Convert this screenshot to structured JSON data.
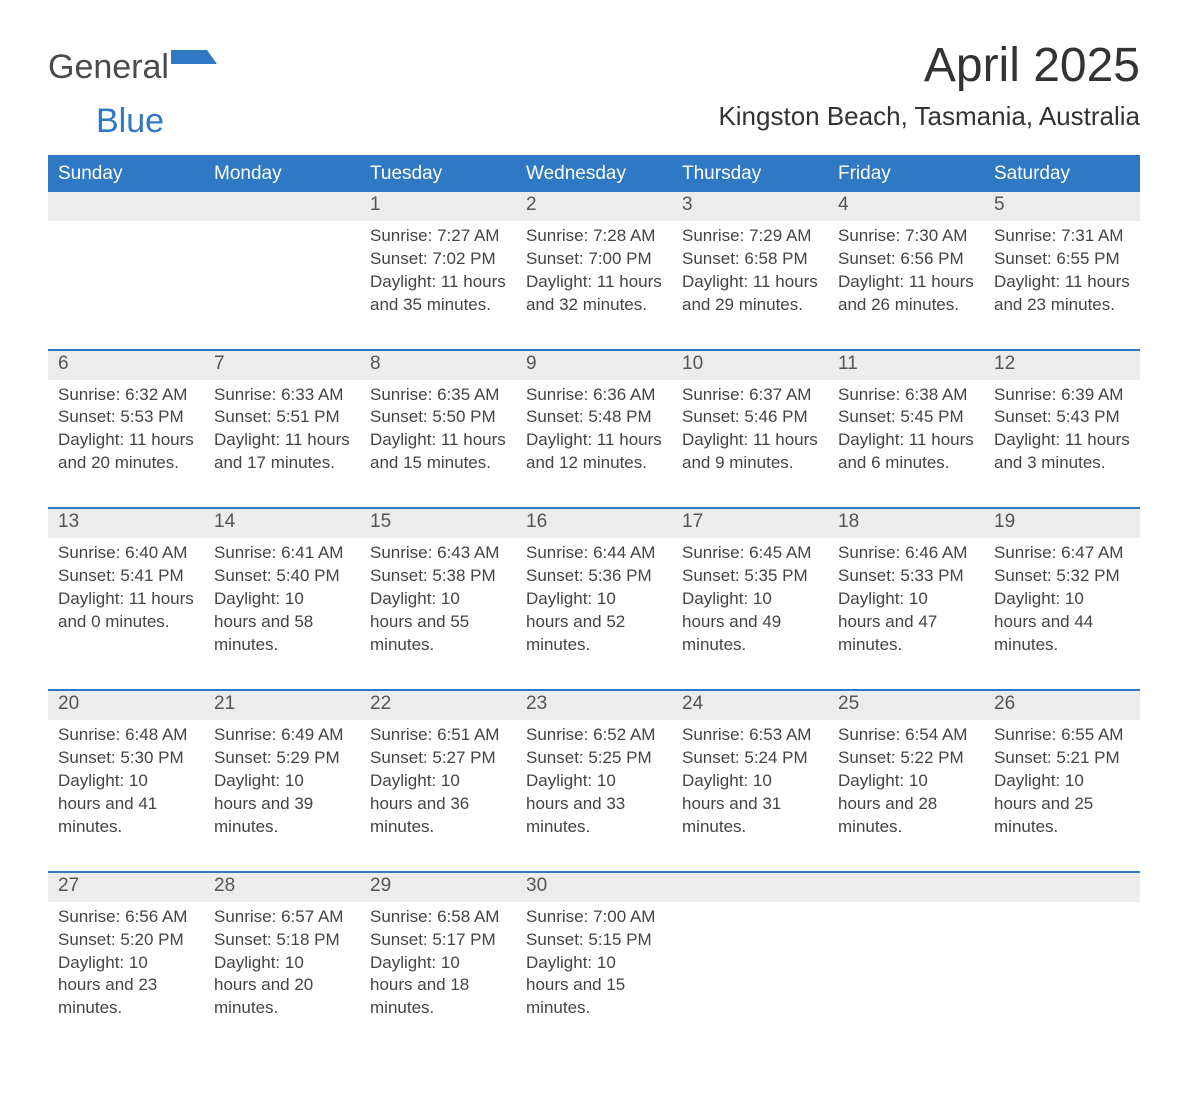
{
  "logo": {
    "word1": "General",
    "word2": "Blue",
    "word1_color": "#4a4a4a",
    "word2_color": "#2f78c4",
    "flag_color": "#2f78c4"
  },
  "title": "April 2025",
  "location": "Kingston Beach, Tasmania, Australia",
  "colors": {
    "header_bg": "#2f78c4",
    "header_text": "#ffffff",
    "daynum_bg": "#ececec",
    "divider": "#2f78c4",
    "body_text": "#444444",
    "title_text": "#333333",
    "page_bg": "#ffffff"
  },
  "typography": {
    "title_fontsize_pt": 36,
    "location_fontsize_pt": 20,
    "dow_fontsize_pt": 14,
    "daynum_fontsize_pt": 14,
    "body_fontsize_pt": 13,
    "font_family": "Segoe UI"
  },
  "days_of_week": [
    "Sunday",
    "Monday",
    "Tuesday",
    "Wednesday",
    "Thursday",
    "Friday",
    "Saturday"
  ],
  "weeks": [
    [
      {
        "n": "",
        "sunrise": "",
        "sunset": "",
        "daylight": ""
      },
      {
        "n": "",
        "sunrise": "",
        "sunset": "",
        "daylight": ""
      },
      {
        "n": "1",
        "sunrise": "Sunrise: 7:27 AM",
        "sunset": "Sunset: 7:02 PM",
        "daylight": "Daylight: 11 hours and 35 minutes."
      },
      {
        "n": "2",
        "sunrise": "Sunrise: 7:28 AM",
        "sunset": "Sunset: 7:00 PM",
        "daylight": "Daylight: 11 hours and 32 minutes."
      },
      {
        "n": "3",
        "sunrise": "Sunrise: 7:29 AM",
        "sunset": "Sunset: 6:58 PM",
        "daylight": "Daylight: 11 hours and 29 minutes."
      },
      {
        "n": "4",
        "sunrise": "Sunrise: 7:30 AM",
        "sunset": "Sunset: 6:56 PM",
        "daylight": "Daylight: 11 hours and 26 minutes."
      },
      {
        "n": "5",
        "sunrise": "Sunrise: 7:31 AM",
        "sunset": "Sunset: 6:55 PM",
        "daylight": "Daylight: 11 hours and 23 minutes."
      }
    ],
    [
      {
        "n": "6",
        "sunrise": "Sunrise: 6:32 AM",
        "sunset": "Sunset: 5:53 PM",
        "daylight": "Daylight: 11 hours and 20 minutes."
      },
      {
        "n": "7",
        "sunrise": "Sunrise: 6:33 AM",
        "sunset": "Sunset: 5:51 PM",
        "daylight": "Daylight: 11 hours and 17 minutes."
      },
      {
        "n": "8",
        "sunrise": "Sunrise: 6:35 AM",
        "sunset": "Sunset: 5:50 PM",
        "daylight": "Daylight: 11 hours and 15 minutes."
      },
      {
        "n": "9",
        "sunrise": "Sunrise: 6:36 AM",
        "sunset": "Sunset: 5:48 PM",
        "daylight": "Daylight: 11 hours and 12 minutes."
      },
      {
        "n": "10",
        "sunrise": "Sunrise: 6:37 AM",
        "sunset": "Sunset: 5:46 PM",
        "daylight": "Daylight: 11 hours and 9 minutes."
      },
      {
        "n": "11",
        "sunrise": "Sunrise: 6:38 AM",
        "sunset": "Sunset: 5:45 PM",
        "daylight": "Daylight: 11 hours and 6 minutes."
      },
      {
        "n": "12",
        "sunrise": "Sunrise: 6:39 AM",
        "sunset": "Sunset: 5:43 PM",
        "daylight": "Daylight: 11 hours and 3 minutes."
      }
    ],
    [
      {
        "n": "13",
        "sunrise": "Sunrise: 6:40 AM",
        "sunset": "Sunset: 5:41 PM",
        "daylight": "Daylight: 11 hours and 0 minutes."
      },
      {
        "n": "14",
        "sunrise": "Sunrise: 6:41 AM",
        "sunset": "Sunset: 5:40 PM",
        "daylight": "Daylight: 10 hours and 58 minutes."
      },
      {
        "n": "15",
        "sunrise": "Sunrise: 6:43 AM",
        "sunset": "Sunset: 5:38 PM",
        "daylight": "Daylight: 10 hours and 55 minutes."
      },
      {
        "n": "16",
        "sunrise": "Sunrise: 6:44 AM",
        "sunset": "Sunset: 5:36 PM",
        "daylight": "Daylight: 10 hours and 52 minutes."
      },
      {
        "n": "17",
        "sunrise": "Sunrise: 6:45 AM",
        "sunset": "Sunset: 5:35 PM",
        "daylight": "Daylight: 10 hours and 49 minutes."
      },
      {
        "n": "18",
        "sunrise": "Sunrise: 6:46 AM",
        "sunset": "Sunset: 5:33 PM",
        "daylight": "Daylight: 10 hours and 47 minutes."
      },
      {
        "n": "19",
        "sunrise": "Sunrise: 6:47 AM",
        "sunset": "Sunset: 5:32 PM",
        "daylight": "Daylight: 10 hours and 44 minutes."
      }
    ],
    [
      {
        "n": "20",
        "sunrise": "Sunrise: 6:48 AM",
        "sunset": "Sunset: 5:30 PM",
        "daylight": "Daylight: 10 hours and 41 minutes."
      },
      {
        "n": "21",
        "sunrise": "Sunrise: 6:49 AM",
        "sunset": "Sunset: 5:29 PM",
        "daylight": "Daylight: 10 hours and 39 minutes."
      },
      {
        "n": "22",
        "sunrise": "Sunrise: 6:51 AM",
        "sunset": "Sunset: 5:27 PM",
        "daylight": "Daylight: 10 hours and 36 minutes."
      },
      {
        "n": "23",
        "sunrise": "Sunrise: 6:52 AM",
        "sunset": "Sunset: 5:25 PM",
        "daylight": "Daylight: 10 hours and 33 minutes."
      },
      {
        "n": "24",
        "sunrise": "Sunrise: 6:53 AM",
        "sunset": "Sunset: 5:24 PM",
        "daylight": "Daylight: 10 hours and 31 minutes."
      },
      {
        "n": "25",
        "sunrise": "Sunrise: 6:54 AM",
        "sunset": "Sunset: 5:22 PM",
        "daylight": "Daylight: 10 hours and 28 minutes."
      },
      {
        "n": "26",
        "sunrise": "Sunrise: 6:55 AM",
        "sunset": "Sunset: 5:21 PM",
        "daylight": "Daylight: 10 hours and 25 minutes."
      }
    ],
    [
      {
        "n": "27",
        "sunrise": "Sunrise: 6:56 AM",
        "sunset": "Sunset: 5:20 PM",
        "daylight": "Daylight: 10 hours and 23 minutes."
      },
      {
        "n": "28",
        "sunrise": "Sunrise: 6:57 AM",
        "sunset": "Sunset: 5:18 PM",
        "daylight": "Daylight: 10 hours and 20 minutes."
      },
      {
        "n": "29",
        "sunrise": "Sunrise: 6:58 AM",
        "sunset": "Sunset: 5:17 PM",
        "daylight": "Daylight: 10 hours and 18 minutes."
      },
      {
        "n": "30",
        "sunrise": "Sunrise: 7:00 AM",
        "sunset": "Sunset: 5:15 PM",
        "daylight": "Daylight: 10 hours and 15 minutes."
      },
      {
        "n": "",
        "sunrise": "",
        "sunset": "",
        "daylight": ""
      },
      {
        "n": "",
        "sunrise": "",
        "sunset": "",
        "daylight": ""
      },
      {
        "n": "",
        "sunrise": "",
        "sunset": "",
        "daylight": ""
      }
    ]
  ]
}
